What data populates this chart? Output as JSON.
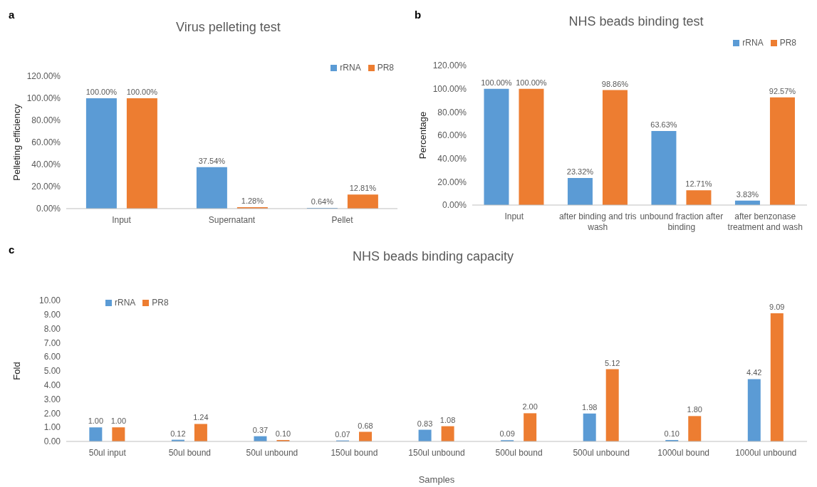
{
  "chart_data": [
    {
      "type": "bar",
      "title": "Virus pelleting test",
      "ylabel": "Pelleting efficiency",
      "annotations": [
        "a"
      ],
      "categories": [
        "Input",
        "Supernatant",
        "Pellet"
      ],
      "series": [
        {
          "name": "rRNA",
          "color": "#5b9bd5",
          "values": [
            100,
            37.54,
            0.64
          ],
          "value_labels": [
            "100.00%",
            "37.54%",
            "0.64%"
          ]
        },
        {
          "name": "PR8",
          "color": "#ed7d31",
          "values": [
            100,
            1.28,
            12.81
          ],
          "value_labels": [
            "100.00%",
            "1.28%",
            "12.81%"
          ]
        }
      ],
      "ylim": [
        0,
        120
      ],
      "yticks": [
        {
          "value": 0,
          "label": "0.00%"
        },
        {
          "value": 20,
          "label": "20.00%"
        },
        {
          "value": 40,
          "label": "40.00%"
        },
        {
          "value": 60,
          "label": "60.00%"
        },
        {
          "value": 80,
          "label": "80.00%"
        },
        {
          "value": 100,
          "label": "100.00%"
        },
        {
          "value": 120,
          "label": "120.00%"
        }
      ],
      "legend": "top right"
    },
    {
      "type": "bar",
      "title": "NHS beads binding test",
      "ylabel": "Percentage",
      "annotations": [
        "b"
      ],
      "categories": [
        "Input",
        "after binding and tris wash",
        "unbound fraction after binding",
        "after benzonase treatment and wash"
      ],
      "series": [
        {
          "name": "rRNA",
          "color": "#5b9bd5",
          "values": [
            100,
            23.32,
            63.63,
            3.83
          ],
          "value_labels": [
            "100.00%",
            "23.32%",
            "63.63%",
            "3.83%"
          ]
        },
        {
          "name": "PR8",
          "color": "#ed7d31",
          "values": [
            100,
            98.86,
            12.71,
            92.57
          ],
          "value_labels": [
            "100.00%",
            "98.86%",
            "12.71%",
            "92.57%"
          ]
        }
      ],
      "ylim": [
        0,
        120
      ],
      "yticks": [
        {
          "value": 0,
          "label": "0.00%"
        },
        {
          "value": 20,
          "label": "20.00%"
        },
        {
          "value": 40,
          "label": "40.00%"
        },
        {
          "value": 60,
          "label": "60.00%"
        },
        {
          "value": 80,
          "label": "80.00%"
        },
        {
          "value": 100,
          "label": "100.00%"
        },
        {
          "value": 120,
          "label": "120.00%"
        }
      ],
      "legend": "top right"
    },
    {
      "type": "bar",
      "title": "NHS beads binding capacity",
      "xlabel": "Samples",
      "ylabel": "Fold",
      "annotations": [
        "c"
      ],
      "categories": [
        "50ul input",
        "50ul bound",
        "50ul unbound",
        "150ul bound",
        "150ul unbound",
        "500ul bound",
        "500ul unbound",
        "1000ul bound",
        "1000ul unbound"
      ],
      "series": [
        {
          "name": "rRNA",
          "color": "#5b9bd5",
          "values": [
            1.0,
            0.12,
            0.37,
            0.07,
            0.83,
            0.09,
            1.98,
            0.1,
            4.42
          ],
          "value_labels": [
            "1.00",
            "0.12",
            "0.37",
            "0.07",
            "0.83",
            "0.09",
            "1.98",
            "0.10",
            "4.42"
          ]
        },
        {
          "name": "PR8",
          "color": "#ed7d31",
          "values": [
            1.0,
            1.24,
            0.1,
            0.68,
            1.08,
            2.0,
            5.12,
            1.8,
            9.09
          ],
          "value_labels": [
            "1.00",
            "1.24",
            "0.10",
            "0.68",
            "1.08",
            "2.00",
            "5.12",
            "1.80",
            "9.09"
          ]
        }
      ],
      "ylim": [
        0,
        10
      ],
      "yticks": [
        {
          "value": 0,
          "label": "0.00"
        },
        {
          "value": 1,
          "label": "1.00"
        },
        {
          "value": 2,
          "label": "2.00"
        },
        {
          "value": 3,
          "label": "3.00"
        },
        {
          "value": 4,
          "label": "4.00"
        },
        {
          "value": 5,
          "label": "5.00"
        },
        {
          "value": 6,
          "label": "6.00"
        },
        {
          "value": 7,
          "label": "7.00"
        },
        {
          "value": 8,
          "label": "8.00"
        },
        {
          "value": 9,
          "label": "9.00"
        },
        {
          "value": 10,
          "label": "10.00"
        }
      ],
      "legend": "top left"
    }
  ]
}
